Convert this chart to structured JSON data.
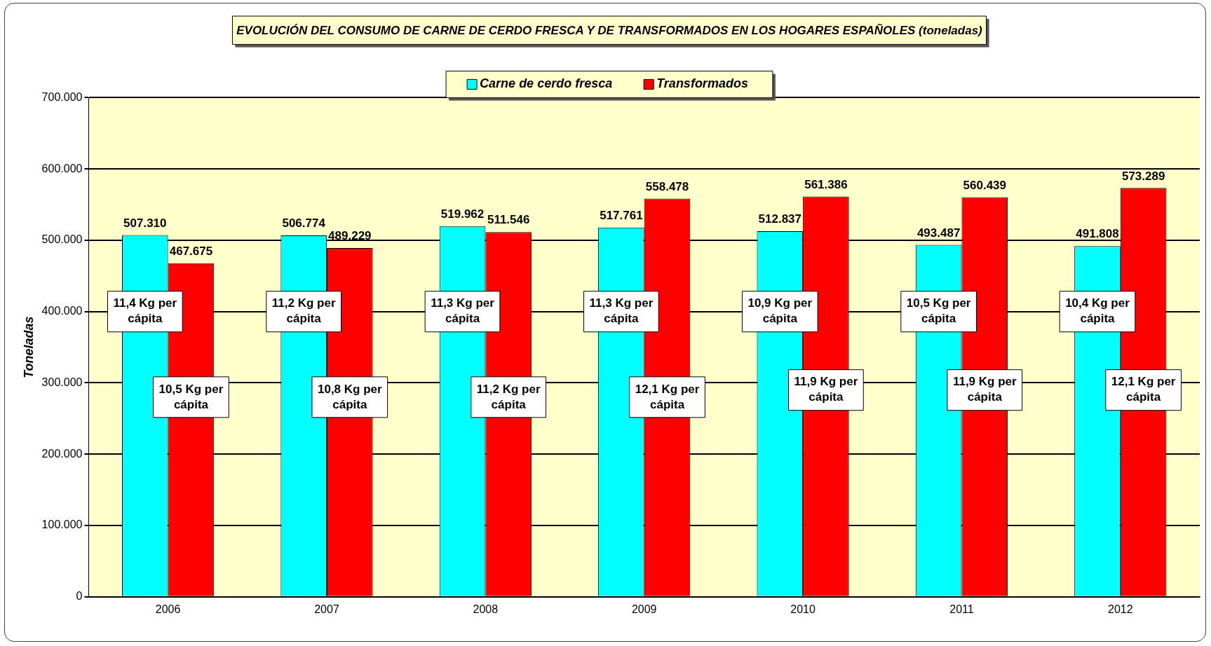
{
  "chart_data": {
    "type": "bar",
    "title": "EVOLUCIÓN DEL CONSUMO DE CARNE DE CERDO FRESCA Y DE TRANSFORMADOS EN LOS HOGARES ESPAÑOLES (toneladas)",
    "ylabel": "Toneladas",
    "categories": [
      "2006",
      "2007",
      "2008",
      "2009",
      "2010",
      "2011",
      "2012"
    ],
    "series": [
      {
        "name": "Carne de cerdo fresca",
        "color": "#00ffff",
        "values": [
          507310,
          506774,
          519962,
          517761,
          512837,
          493487,
          491808
        ],
        "value_labels": [
          "507.310",
          "506.774",
          "519.962",
          "517.761",
          "512.837",
          "493.487",
          "491.808"
        ]
      },
      {
        "name": "Transformados",
        "color": "#ff0000",
        "values": [
          467675,
          489229,
          511546,
          558478,
          561386,
          560439,
          573289
        ],
        "value_labels": [
          "467.675",
          "489.229",
          "511.546",
          "558.478",
          "561.386",
          "560.439",
          "573.289"
        ]
      }
    ],
    "ylim": [
      0,
      700000
    ],
    "yticks": [
      0,
      {
        "value": 100000,
        "label": "100.000"
      },
      {
        "value": 200000,
        "label": "200.000"
      },
      {
        "value": 300000,
        "label": "300.000"
      },
      {
        "value": 400000,
        "label": "400.000"
      },
      {
        "value": 500000,
        "label": "500.000"
      },
      {
        "value": 600000,
        "label": "600.000"
      },
      {
        "value": 700000,
        "label": "700.000"
      }
    ],
    "grid": "y",
    "legend": "top",
    "annotations": [
      {
        "text": "11,4 Kg per cápita",
        "x": "2006",
        "y": 400000
      },
      {
        "text": "10,5 Kg per cápita",
        "x": "2006",
        "y": 280000
      },
      {
        "text": "11,2 Kg per cápita",
        "x": "2007",
        "y": 400000
      },
      {
        "text": "10,8 Kg per cápita",
        "x": "2007",
        "y": 280000
      },
      {
        "text": "11,3 Kg per cápita",
        "x": "2008",
        "y": 400000
      },
      {
        "text": "11,2 Kg per cápita",
        "x": "2008",
        "y": 280000
      },
      {
        "text": "11,3 Kg per cápita",
        "x": "2009",
        "y": 400000
      },
      {
        "text": "12,1 Kg per cápita",
        "x": "2009",
        "y": 280000
      },
      {
        "text": "10,9 Kg per cápita",
        "x": "2010",
        "y": 400000
      },
      {
        "text": "11,9 Kg per cápita",
        "x": "2010",
        "y": 290000
      },
      {
        "text": "10,5 Kg per cápita",
        "x": "2011",
        "y": 400000
      },
      {
        "text": "11,9 Kg per cápita",
        "x": "2011",
        "y": 290000
      },
      {
        "text": "10,4 Kg per cápita",
        "x": "2012",
        "y": 400000
      },
      {
        "text": "12,1 Kg per cápita",
        "x": "2012",
        "y": 290000
      }
    ]
  }
}
